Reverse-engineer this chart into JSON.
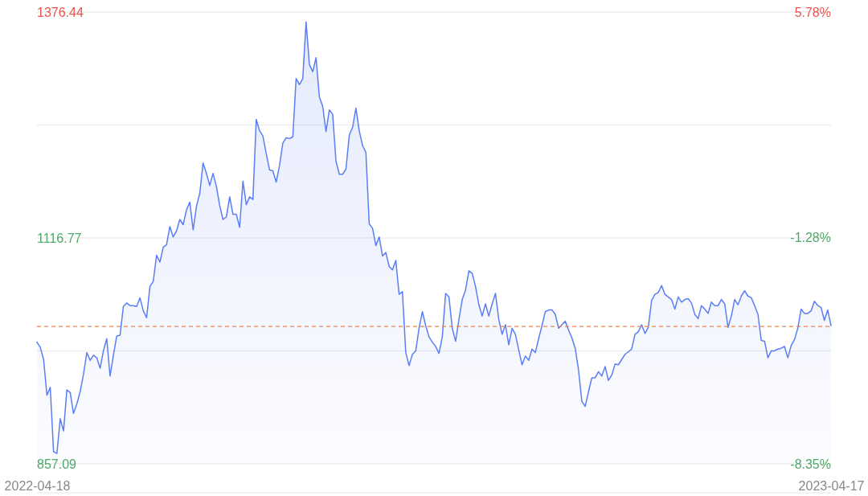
{
  "chart_data": {
    "type": "area",
    "categories": [
      "2022-04-18",
      null,
      null,
      null,
      null,
      null,
      null,
      null,
      null,
      null,
      null,
      null,
      null,
      null,
      null,
      null,
      null,
      null,
      null,
      null,
      null,
      null,
      null,
      null,
      null,
      null,
      null,
      null,
      null,
      null,
      null,
      null,
      null,
      null,
      null,
      null,
      null,
      null,
      null,
      null,
      null,
      null,
      null,
      null,
      null,
      null,
      null,
      null,
      null,
      null,
      null,
      null,
      null,
      null,
      null,
      null,
      null,
      null,
      null,
      null,
      null,
      null,
      null,
      null,
      null,
      null,
      null,
      null,
      null,
      null,
      null,
      null,
      null,
      null,
      null,
      null,
      null,
      null,
      null,
      null,
      null,
      null,
      null,
      null,
      null,
      null,
      null,
      null,
      null,
      null,
      null,
      null,
      null,
      null,
      null,
      null,
      null,
      null,
      null,
      null,
      null,
      null,
      null,
      null,
      null,
      null,
      null,
      null,
      null,
      null,
      null,
      null,
      null,
      null,
      null,
      null,
      null,
      null,
      null,
      null,
      null,
      null,
      null,
      null,
      null,
      null,
      null,
      null,
      null,
      null,
      null,
      null,
      null,
      null,
      null,
      null,
      null,
      null,
      null,
      null,
      null,
      null,
      null,
      null,
      null,
      null,
      null,
      null,
      null,
      null,
      null,
      null,
      null,
      null,
      null,
      null,
      null,
      null,
      null,
      null,
      null,
      null,
      null,
      null,
      null,
      null,
      null,
      null,
      null,
      null,
      null,
      null,
      null,
      null,
      null,
      null,
      null,
      null,
      null,
      null,
      null,
      null,
      null,
      null,
      null,
      null,
      null,
      null,
      null,
      null,
      null,
      null,
      null,
      null,
      null,
      null,
      null,
      null,
      null,
      null,
      null,
      null,
      null,
      null,
      null,
      null,
      null,
      null,
      null,
      null,
      null,
      null,
      null,
      null,
      null,
      null,
      null,
      null,
      null,
      null,
      null,
      null,
      null,
      null,
      null,
      null,
      null,
      null,
      null,
      null,
      null,
      null,
      null,
      null,
      null,
      null,
      null,
      null,
      null,
      "2023-04-17"
    ],
    "series": [
      {
        "color": "#5b7ef5",
        "values": [
          997,
          991,
          977,
          936,
          945,
          871,
          869,
          909,
          895,
          942,
          939,
          915,
          926,
          940,
          960,
          985,
          976,
          982,
          979,
          967,
          987,
          1001,
          958,
          982,
          1004,
          1005,
          1038,
          1042,
          1039,
          1039,
          1038,
          1048,
          1033,
          1025,
          1061,
          1067,
          1097,
          1089,
          1106,
          1109,
          1130,
          1118,
          1125,
          1138,
          1132,
          1149,
          1158,
          1126,
          1153,
          1168,
          1203,
          1191,
          1177,
          1191,
          1176,
          1154,
          1138,
          1141,
          1164,
          1144,
          1144,
          1129,
          1182,
          1155,
          1164,
          1161,
          1253,
          1240,
          1234,
          1214,
          1195,
          1194,
          1181,
          1200,
          1226,
          1232,
          1231,
          1233,
          1300,
          1293,
          1300,
          1365,
          1316,
          1308,
          1324,
          1279,
          1268,
          1239,
          1264,
          1259,
          1205,
          1190,
          1190,
          1196,
          1235,
          1244,
          1266,
          1240,
          1223,
          1215,
          1133,
          1128,
          1108,
          1118,
          1096,
          1100,
          1084,
          1080,
          1091,
          1052,
          1055,
          985,
          970,
          983,
          987,
          1013,
          1032,
          1016,
          1003,
          997,
          992,
          984,
          1003,
          1053,
          1049,
          1013,
          998,
          1023,
          1046,
          1057,
          1079,
          1076,
          1061,
          1040,
          1027,
          1041,
          1027,
          1041,
          1053,
          1023,
          1006,
          1017,
          994,
          1013,
          1006,
          988,
          971,
          981,
          976,
          989,
          985,
          1001,
          1016,
          1032,
          1034,
          1034,
          1029,
          1013,
          1017,
          1021,
          1011,
          1002,
          990,
          965,
          929,
          923,
          940,
          956,
          956,
          963,
          958,
          969,
          953,
          959,
          972,
          971,
          977,
          983,
          986,
          989,
          1006,
          1009,
          1017,
          1007,
          1014,
          1045,
          1052,
          1054,
          1062,
          1052,
          1049,
          1046,
          1035,
          1049,
          1043,
          1046,
          1047,
          1042,
          1029,
          1024,
          1039,
          1035,
          1030,
          1043,
          1039,
          1039,
          1046,
          1041,
          1014,
          1027,
          1046,
          1040,
          1050,
          1056,
          1050,
          1048,
          1039,
          1029,
          999,
          998,
          979,
          987,
          987,
          989,
          990,
          992,
          979,
          993,
          1000,
          1013,
          1035,
          1030,
          1030,
          1033,
          1044,
          1039,
          1037,
          1022,
          1034,
          1016
        ]
      }
    ],
    "ylim": [
      857.09,
      1376.44
    ],
    "yticks": [
      857.09,
      {
        "value": 986.93,
        "label": null
      },
      1116.77,
      {
        "value": 1246.61,
        "label": null
      },
      1376.44
    ],
    "y2lim": [
      -8.35,
      5.78
    ],
    "y2ticks": [
      {
        "value": -8.35,
        "label": "-8.35%"
      },
      {
        "value": -1.28,
        "label": "-1.28%"
      },
      {
        "value": 5.78,
        "label": "5.78%"
      }
    ],
    "ref_lines": [
      {
        "axis": "y",
        "value": 1015,
        "color": "#f0804a",
        "line_style": "dashed"
      }
    ],
    "grid": "y",
    "marker": "none",
    "line_style": "solid"
  }
}
